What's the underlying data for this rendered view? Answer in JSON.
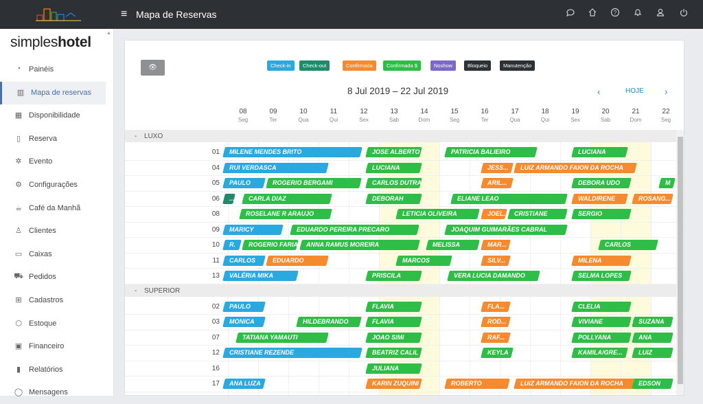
{
  "topbar": {
    "title": "Mapa de Reservas",
    "menu_glyph": "≡",
    "icons": [
      "chat-icon",
      "home-icon",
      "help-icon",
      "bell-icon",
      "user-icon",
      "power-icon"
    ]
  },
  "sidebar": {
    "brand_light": "simples",
    "brand_bold": "hotel",
    "items": [
      {
        "label": "Painéis",
        "icon": "gauge-icon"
      },
      {
        "label": "Mapa de reservas",
        "icon": "map-icon",
        "active": true
      },
      {
        "label": "Disponibilidade",
        "icon": "calendar-icon"
      },
      {
        "label": "Reserva",
        "icon": "document-icon"
      },
      {
        "label": "Evento",
        "icon": "party-icon"
      },
      {
        "label": "Configurações",
        "icon": "gear-icon"
      },
      {
        "label": "Café da Manhã",
        "icon": "coffee-icon"
      },
      {
        "label": "Clientes",
        "icon": "clients-icon"
      },
      {
        "label": "Caixas",
        "icon": "cash-icon"
      },
      {
        "label": "Pedidos",
        "icon": "cart-icon"
      },
      {
        "label": "Cadastros",
        "icon": "sitemap-icon"
      },
      {
        "label": "Estoque",
        "icon": "box-icon"
      },
      {
        "label": "Financeiro",
        "icon": "money-icon"
      },
      {
        "label": "Relatórios",
        "icon": "chart-icon"
      },
      {
        "label": "Mensagens",
        "icon": "message-icon"
      }
    ]
  },
  "legend": [
    {
      "label": "Check-in",
      "color": "#2aa8e0"
    },
    {
      "label": "Check-out",
      "color": "#218a6a"
    },
    {
      "label": "Confirmada",
      "color": "#f58a2e"
    },
    {
      "label": "Confirmada $",
      "color": "#2ebd46"
    },
    {
      "label": "Noshow",
      "color": "#7b68c9"
    },
    {
      "label": "Bloqueio",
      "color": "#2d3035"
    },
    {
      "label": "Manutenção",
      "color": "#2d3035"
    }
  ],
  "nav": {
    "range": "8 Jul 2019 – 22 Jul 2019",
    "today": "HOJE",
    "prev": "‹",
    "next": "›"
  },
  "days": [
    {
      "n": "08",
      "w": "Seg"
    },
    {
      "n": "09",
      "w": "Ter"
    },
    {
      "n": "10",
      "w": "Qua"
    },
    {
      "n": "11",
      "w": "Qui"
    },
    {
      "n": "12",
      "w": "Sex"
    },
    {
      "n": "13",
      "w": "Sab"
    },
    {
      "n": "14",
      "w": "Dom"
    },
    {
      "n": "15",
      "w": "Seg"
    },
    {
      "n": "16",
      "w": "Ter"
    },
    {
      "n": "17",
      "w": "Qua"
    },
    {
      "n": "18",
      "w": "Qui"
    },
    {
      "n": "19",
      "w": "Sex"
    },
    {
      "n": "20",
      "w": "Sab"
    },
    {
      "n": "21",
      "w": "Dom"
    },
    {
      "n": "22",
      "w": "Seg"
    }
  ],
  "groups": [
    {
      "name": "LUXO",
      "rooms": [
        {
          "num": "01",
          "bookings": [
            {
              "g": "MILENE MENDES BRITO",
              "s": -0.3,
              "e": 4.4,
              "c": "blue"
            },
            {
              "g": "JOSE ALBERTO",
              "s": 4.6,
              "e": 6.4,
              "c": "green"
            },
            {
              "g": "PATRICIA BALIEIRO",
              "s": 7.2,
              "e": 10.2,
              "c": "green"
            },
            {
              "g": "LUCIANA",
              "s": 11.4,
              "e": 13.2,
              "c": "green"
            }
          ]
        },
        {
          "num": "04",
          "bookings": [
            {
              "g": "RUI VERDASCA",
              "s": -0.3,
              "e": 3.3,
              "c": "blue"
            },
            {
              "g": "LUCIANA",
              "s": 4.6,
              "e": 6.4,
              "c": "green"
            },
            {
              "g": "JESS...",
              "s": 8.4,
              "e": 9.4,
              "c": "orange"
            },
            {
              "g": "LUIZ ARMANDO FAION DA ROCHA",
              "s": 9.5,
              "e": 13.5,
              "c": "orange"
            }
          ]
        },
        {
          "num": "05",
          "bookings": [
            {
              "g": "PAULO",
              "s": -0.3,
              "e": 1.2,
              "c": "blue"
            },
            {
              "g": "ROGERIO BERGAMI",
              "s": 1.3,
              "e": 4.4,
              "c": "green"
            },
            {
              "g": "CARLOS DUTRA",
              "s": 4.6,
              "e": 6.4,
              "c": "green"
            },
            {
              "g": "ARIL...",
              "s": 8.4,
              "e": 9.4,
              "c": "orange"
            },
            {
              "g": "DEBORA UDO",
              "s": 11.4,
              "e": 13.3,
              "c": "green"
            },
            {
              "g": "M",
              "s": 14.3,
              "e": 15.2,
              "c": "green"
            }
          ]
        },
        {
          "num": "06",
          "bookings": [
            {
              "g": "...",
              "s": -0.3,
              "e": 0.2,
              "c": "teal"
            },
            {
              "g": "CARLA DIAZ",
              "s": 0.5,
              "e": 3.4,
              "c": "green"
            },
            {
              "g": "DEBORAH",
              "s": 4.6,
              "e": 6.4,
              "c": "green"
            },
            {
              "g": "ELIANE LEAO",
              "s": 7.4,
              "e": 11.2,
              "c": "green"
            },
            {
              "g": "WALDIRENE",
              "s": 11.4,
              "e": 13.2,
              "c": "orange"
            },
            {
              "g": "ROSANG...",
              "s": 13.4,
              "e": 14.7,
              "c": "orange"
            }
          ]
        },
        {
          "num": "08",
          "bookings": [
            {
              "g": "ROSELANE R ARAUJO",
              "s": 0.4,
              "e": 3.4,
              "c": "green"
            },
            {
              "g": "LETICIA OLIVEIRA",
              "s": 5.6,
              "e": 8.3,
              "c": "green"
            },
            {
              "g": "JOEL...",
              "s": 8.4,
              "e": 9.2,
              "c": "orange"
            },
            {
              "g": "CRISTIANE",
              "s": 9.3,
              "e": 11.2,
              "c": "green"
            },
            {
              "g": "SERGIO",
              "s": 11.4,
              "e": 13.3,
              "c": "green"
            }
          ]
        },
        {
          "num": "09",
          "bookings": [
            {
              "g": "MARICY",
              "s": -0.3,
              "e": 1.8,
              "c": "blue"
            },
            {
              "g": "EDUARDO PEREIRA PRECARO",
              "s": 2.1,
              "e": 6.3,
              "c": "green"
            },
            {
              "g": "JOAQUIM GUIMARÃES CABRAL",
              "s": 7.2,
              "e": 11.2,
              "c": "green"
            }
          ]
        },
        {
          "num": "10",
          "bookings": [
            {
              "g": "R.",
              "s": -0.3,
              "e": 0.4,
              "c": "blue"
            },
            {
              "g": "ROGERIO FARIA",
              "s": 0.5,
              "e": 2.3,
              "c": "green"
            },
            {
              "g": "ANNA RAMUS MOREIRA",
              "s": 2.4,
              "e": 6.3,
              "c": "green"
            },
            {
              "g": "MELISSA",
              "s": 6.6,
              "e": 8.3,
              "c": "green"
            },
            {
              "g": "MAR...",
              "s": 8.4,
              "e": 9.3,
              "c": "orange"
            },
            {
              "g": "CARLOS",
              "s": 12.3,
              "e": 14.2,
              "c": "green"
            }
          ]
        },
        {
          "num": "11",
          "bookings": [
            {
              "g": "CARLOS",
              "s": -0.3,
              "e": 1.2,
              "c": "blue"
            },
            {
              "g": "EDUARDO",
              "s": 1.3,
              "e": 3.3,
              "c": "orange"
            },
            {
              "g": "MARCOS",
              "s": 5.6,
              "e": 7.4,
              "c": "green"
            },
            {
              "g": "SILV...",
              "s": 8.4,
              "e": 9.3,
              "c": "orange"
            },
            {
              "g": "MILENA",
              "s": 11.4,
              "e": 13.3,
              "c": "orange"
            }
          ]
        },
        {
          "num": "13",
          "bookings": [
            {
              "g": "VALÉRIA MIKA",
              "s": -0.3,
              "e": 2.3,
              "c": "blue"
            },
            {
              "g": "PRISCILA",
              "s": 4.6,
              "e": 6.4,
              "c": "green"
            },
            {
              "g": "VERA LUCIA DAMANDO",
              "s": 7.3,
              "e": 10.3,
              "c": "green"
            },
            {
              "g": "SELMA LOPES",
              "s": 11.4,
              "e": 13.3,
              "c": "green"
            }
          ]
        }
      ]
    },
    {
      "name": "SUPERIOR",
      "rooms": [
        {
          "num": "02",
          "bookings": [
            {
              "g": "PAULO",
              "s": -0.3,
              "e": 1.2,
              "c": "blue"
            },
            {
              "g": "FLAVIA",
              "s": 4.6,
              "e": 6.4,
              "c": "green"
            },
            {
              "g": "FLA...",
              "s": 8.4,
              "e": 9.3,
              "c": "orange"
            },
            {
              "g": "CLELIA",
              "s": 11.4,
              "e": 13.3,
              "c": "green"
            }
          ]
        },
        {
          "num": "03",
          "bookings": [
            {
              "g": "MONICA",
              "s": -0.3,
              "e": 1.2,
              "c": "blue"
            },
            {
              "g": "HILDEBRANDO",
              "s": 2.3,
              "e": 4.4,
              "c": "green"
            },
            {
              "g": "FLAVIA",
              "s": 4.6,
              "e": 6.4,
              "c": "green"
            },
            {
              "g": "ROD...",
              "s": 8.4,
              "e": 9.3,
              "c": "orange"
            },
            {
              "g": "VIVIANE",
              "s": 11.4,
              "e": 13.3,
              "c": "green"
            },
            {
              "g": "SUZANA",
              "s": 13.4,
              "e": 14.7,
              "c": "green"
            }
          ]
        },
        {
          "num": "07",
          "bookings": [
            {
              "g": "TATIANA YAMAUTI",
              "s": 0.3,
              "e": 3.3,
              "c": "green"
            },
            {
              "g": "JOAO SIMI",
              "s": 4.6,
              "e": 6.4,
              "c": "green"
            },
            {
              "g": "RAF...",
              "s": 8.4,
              "e": 9.3,
              "c": "orange"
            },
            {
              "g": "POLLYANA",
              "s": 11.4,
              "e": 13.3,
              "c": "green"
            },
            {
              "g": "ANA",
              "s": 13.4,
              "e": 14.7,
              "c": "green"
            }
          ]
        },
        {
          "num": "12",
          "bookings": [
            {
              "g": "CRISTIANE REZENDE",
              "s": -0.3,
              "e": 4.4,
              "c": "blue"
            },
            {
              "g": "BEATRIZ CALIL",
              "s": 4.6,
              "e": 6.4,
              "c": "green"
            },
            {
              "g": "KEYLA",
              "s": 8.4,
              "e": 9.4,
              "c": "green"
            },
            {
              "g": "KAMILA/GRE...",
              "s": 11.4,
              "e": 13.2,
              "c": "green"
            },
            {
              "g": "LUIZ",
              "s": 13.4,
              "e": 14.7,
              "c": "green"
            }
          ]
        },
        {
          "num": "16",
          "bookings": [
            {
              "g": "JULIANA",
              "s": 4.6,
              "e": 6.4,
              "c": "green"
            }
          ]
        },
        {
          "num": "17",
          "bookings": [
            {
              "g": "ANA LUZA",
              "s": -0.3,
              "e": 1.2,
              "c": "blue"
            },
            {
              "g": "KARIN ZUQUINI",
              "s": 4.6,
              "e": 6.4,
              "c": "orange"
            },
            {
              "g": "ROBERTO",
              "s": 7.2,
              "e": 9.3,
              "c": "orange"
            },
            {
              "g": "LUIZ ARMANDO FAION DA ROCHA",
              "s": 9.5,
              "e": 13.5,
              "c": "orange"
            },
            {
              "g": "EDSON",
              "s": 13.4,
              "e": 14.7,
              "c": "green"
            }
          ]
        }
      ]
    }
  ]
}
